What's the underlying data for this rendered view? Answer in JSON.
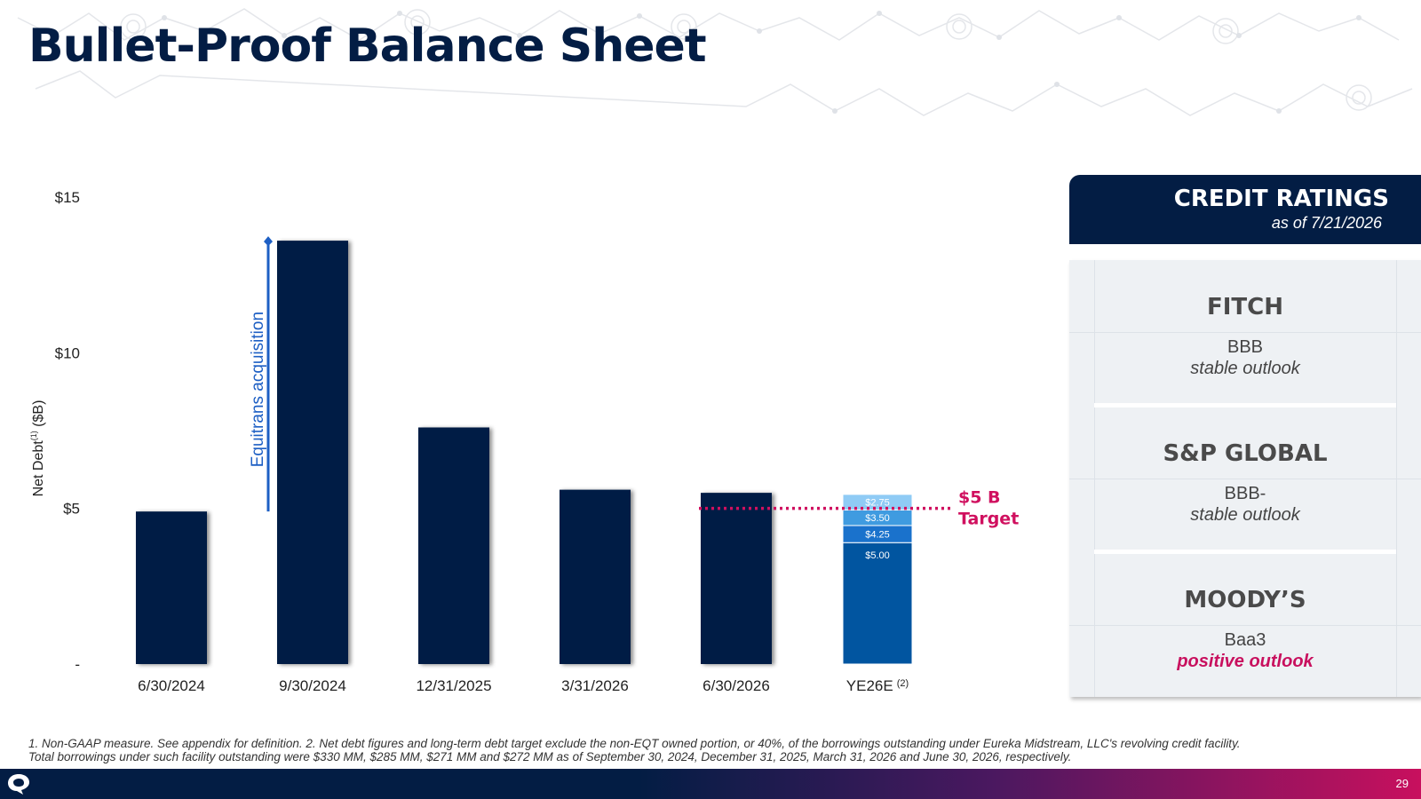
{
  "page": {
    "title": "Bullet-Proof Balance Sheet",
    "page_number": "29"
  },
  "chart_data": {
    "type": "bar",
    "ylabel": "Net Debt",
    "ylabel_sup": "(1)",
    "ylabel_unit": "($B)",
    "ylim": [
      0,
      15
    ],
    "y_ticks": [
      {
        "value": 0,
        "label": "-"
      },
      {
        "value": 5,
        "label": "$5"
      },
      {
        "value": 10,
        "label": "$10"
      },
      {
        "value": 15,
        "label": "$15"
      }
    ],
    "categories": [
      "6/30/2024",
      "9/30/2024",
      "12/31/2025",
      "3/31/2026",
      "6/30/2026",
      "YE26E"
    ],
    "category_sups": [
      "",
      "",
      "",
      "",
      "",
      "(2)"
    ],
    "values": [
      4.9,
      13.6,
      7.6,
      5.6,
      5.5,
      null
    ],
    "stacked_last": {
      "category": "YE26E",
      "segments": [
        {
          "bottom": 0,
          "top": 3.9,
          "label": "$5.00",
          "color": "#0155a0"
        },
        {
          "bottom": 3.9,
          "top": 4.45,
          "label": "$4.25",
          "color": "#1a72cc"
        },
        {
          "bottom": 4.45,
          "top": 4.95,
          "label": "$3.50",
          "color": "#3f9be0"
        },
        {
          "bottom": 4.95,
          "top": 5.45,
          "label": "$2.75",
          "color": "#8fcbf5"
        }
      ]
    },
    "annotation": {
      "text": "Equitrans acquisition",
      "from": 4.9,
      "to": 13.6,
      "color": "#1d5fc4"
    },
    "target": {
      "value": 5,
      "label_line1": "$5 B",
      "label_line2": "Target",
      "color": "#d0105f"
    },
    "bar_color": "#031d44"
  },
  "ratings": {
    "title": "CREDIT RATINGS",
    "subtitle": "as of 7/21/2026",
    "items": [
      {
        "agency": "FITCH",
        "grade": "BBB",
        "outlook": "stable outlook",
        "positive": false
      },
      {
        "agency": "S&P GLOBAL",
        "grade": "BBB-",
        "outlook": "stable outlook",
        "positive": false
      },
      {
        "agency": "MOODY’S",
        "grade": "Baa3",
        "outlook": "positive outlook",
        "positive": true
      }
    ]
  },
  "footnote": {
    "line1": "1. Non-GAAP measure. See appendix for definition. 2. Net debt figures and long-term debt target exclude the non-EQT owned portion, or 40%, of the borrowings outstanding under Eureka Midstream, LLC's revolving credit facility.",
    "line2": "Total borrowings under such facility outstanding were $330 MM, $285 MM, $271 MM and $272 MM as of September 30, 2024, December 31, 2025, March 31, 2026 and June 30, 2026, respectively."
  }
}
